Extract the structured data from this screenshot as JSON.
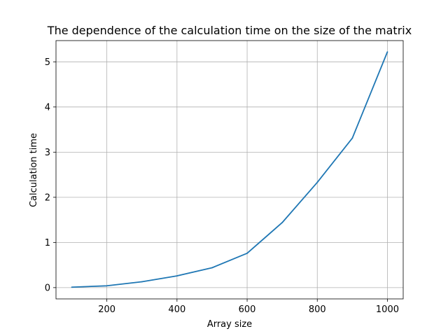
{
  "chart_data": {
    "type": "line",
    "title": "The dependence of the calculation time on the size of the matrix",
    "xlabel": "Array size",
    "ylabel": "Calculation time",
    "x": [
      100,
      200,
      300,
      400,
      500,
      600,
      700,
      800,
      900,
      1000
    ],
    "series": [
      {
        "values": [
          0.01,
          0.04,
          0.13,
          0.26,
          0.44,
          0.76,
          1.44,
          2.33,
          3.31,
          5.22
        ],
        "color": "#1f77b4"
      }
    ],
    "xlim": [
      55,
      1045
    ],
    "ylim": [
      -0.25,
      5.47
    ],
    "xticks": [
      200,
      400,
      600,
      800,
      1000
    ],
    "yticks": [
      0,
      1,
      2,
      3,
      4,
      5
    ],
    "xtick_labels": [
      "200",
      "400",
      "600",
      "800",
      "1000"
    ],
    "ytick_labels": [
      "0",
      "1",
      "2",
      "3",
      "4",
      "5"
    ],
    "grid": true,
    "legend": false
  }
}
